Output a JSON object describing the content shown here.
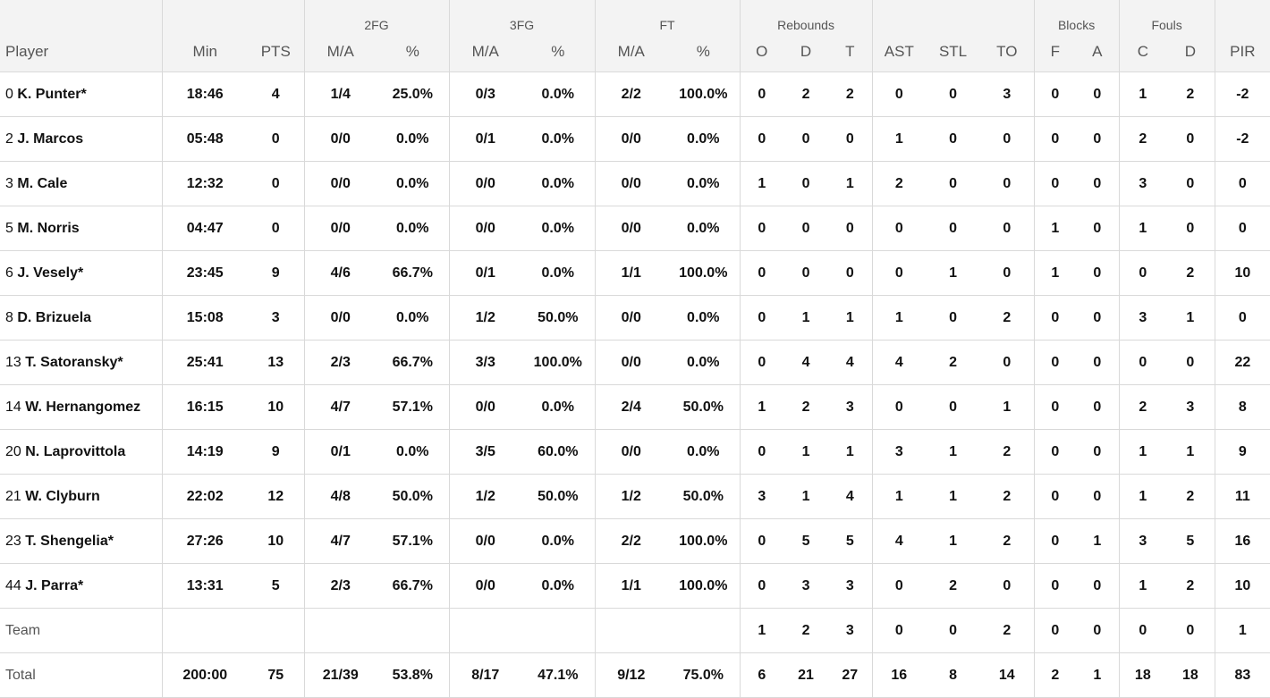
{
  "groups": {
    "fg2": "2FG",
    "fg3": "3FG",
    "ft": "FT",
    "reb": "Rebounds",
    "blk": "Blocks",
    "fouls": "Fouls"
  },
  "columns": [
    "Player",
    "Min",
    "PTS",
    "M/A",
    "%",
    "M/A",
    "%",
    "M/A",
    "%",
    "O",
    "D",
    "T",
    "AST",
    "STL",
    "TO",
    "F",
    "A",
    "C",
    "D",
    "PIR"
  ],
  "rows": [
    {
      "num": "0",
      "name": "K. Punter*",
      "stats": [
        "18:46",
        "4",
        "1/4",
        "25.0%",
        "0/3",
        "0.0%",
        "2/2",
        "100.0%",
        "0",
        "2",
        "2",
        "0",
        "0",
        "3",
        "0",
        "0",
        "1",
        "2",
        "-2"
      ]
    },
    {
      "num": "2",
      "name": "J. Marcos",
      "stats": [
        "05:48",
        "0",
        "0/0",
        "0.0%",
        "0/1",
        "0.0%",
        "0/0",
        "0.0%",
        "0",
        "0",
        "0",
        "1",
        "0",
        "0",
        "0",
        "0",
        "2",
        "0",
        "-2"
      ]
    },
    {
      "num": "3",
      "name": "M. Cale",
      "stats": [
        "12:32",
        "0",
        "0/0",
        "0.0%",
        "0/0",
        "0.0%",
        "0/0",
        "0.0%",
        "1",
        "0",
        "1",
        "2",
        "0",
        "0",
        "0",
        "0",
        "3",
        "0",
        "0"
      ]
    },
    {
      "num": "5",
      "name": "M. Norris",
      "stats": [
        "04:47",
        "0",
        "0/0",
        "0.0%",
        "0/0",
        "0.0%",
        "0/0",
        "0.0%",
        "0",
        "0",
        "0",
        "0",
        "0",
        "0",
        "1",
        "0",
        "1",
        "0",
        "0"
      ]
    },
    {
      "num": "6",
      "name": "J. Vesely*",
      "stats": [
        "23:45",
        "9",
        "4/6",
        "66.7%",
        "0/1",
        "0.0%",
        "1/1",
        "100.0%",
        "0",
        "0",
        "0",
        "0",
        "1",
        "0",
        "1",
        "0",
        "0",
        "2",
        "10"
      ]
    },
    {
      "num": "8",
      "name": "D. Brizuela",
      "stats": [
        "15:08",
        "3",
        "0/0",
        "0.0%",
        "1/2",
        "50.0%",
        "0/0",
        "0.0%",
        "0",
        "1",
        "1",
        "1",
        "0",
        "2",
        "0",
        "0",
        "3",
        "1",
        "0"
      ]
    },
    {
      "num": "13",
      "name": "T. Satoransky*",
      "stats": [
        "25:41",
        "13",
        "2/3",
        "66.7%",
        "3/3",
        "100.0%",
        "0/0",
        "0.0%",
        "0",
        "4",
        "4",
        "4",
        "2",
        "0",
        "0",
        "0",
        "0",
        "0",
        "22"
      ]
    },
    {
      "num": "14",
      "name": "W. Hernangomez",
      "stats": [
        "16:15",
        "10",
        "4/7",
        "57.1%",
        "0/0",
        "0.0%",
        "2/4",
        "50.0%",
        "1",
        "2",
        "3",
        "0",
        "0",
        "1",
        "0",
        "0",
        "2",
        "3",
        "8"
      ]
    },
    {
      "num": "20",
      "name": "N. Laprovittola",
      "stats": [
        "14:19",
        "9",
        "0/1",
        "0.0%",
        "3/5",
        "60.0%",
        "0/0",
        "0.0%",
        "0",
        "1",
        "1",
        "3",
        "1",
        "2",
        "0",
        "0",
        "1",
        "1",
        "9"
      ]
    },
    {
      "num": "21",
      "name": "W. Clyburn",
      "stats": [
        "22:02",
        "12",
        "4/8",
        "50.0%",
        "1/2",
        "50.0%",
        "1/2",
        "50.0%",
        "3",
        "1",
        "4",
        "1",
        "1",
        "2",
        "0",
        "0",
        "1",
        "2",
        "11"
      ]
    },
    {
      "num": "23",
      "name": "T. Shengelia*",
      "stats": [
        "27:26",
        "10",
        "4/7",
        "57.1%",
        "0/0",
        "0.0%",
        "2/2",
        "100.0%",
        "0",
        "5",
        "5",
        "4",
        "1",
        "2",
        "0",
        "1",
        "3",
        "5",
        "16"
      ]
    },
    {
      "num": "44",
      "name": "J. Parra*",
      "stats": [
        "13:31",
        "5",
        "2/3",
        "66.7%",
        "0/0",
        "0.0%",
        "1/1",
        "100.0%",
        "0",
        "3",
        "3",
        "0",
        "2",
        "0",
        "0",
        "0",
        "1",
        "2",
        "10"
      ]
    },
    {
      "num": "",
      "name": "Team",
      "stats": [
        "",
        "",
        "",
        "",
        "",
        "",
        "",
        "",
        "1",
        "2",
        "3",
        "0",
        "0",
        "2",
        "0",
        "0",
        "0",
        "0",
        "1"
      ],
      "cls": "team"
    },
    {
      "num": "",
      "name": "Total",
      "stats": [
        "200:00",
        "75",
        "21/39",
        "53.8%",
        "8/17",
        "47.1%",
        "9/12",
        "75.0%",
        "6",
        "21",
        "27",
        "16",
        "8",
        "14",
        "2",
        "1",
        "18",
        "18",
        "83"
      ],
      "cls": "total"
    }
  ]
}
